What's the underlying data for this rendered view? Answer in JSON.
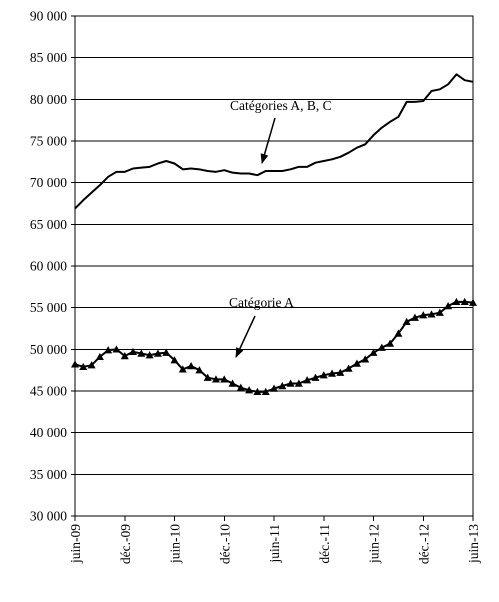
{
  "chart_data": {
    "type": "line",
    "title": "",
    "xlabel": "",
    "ylabel": "",
    "ylim": [
      30000,
      90000
    ],
    "y_ticks": [
      30000,
      35000,
      40000,
      45000,
      50000,
      55000,
      60000,
      65000,
      70000,
      75000,
      80000,
      85000,
      90000
    ],
    "y_tick_labels": [
      "30 000",
      "35 000",
      "40 000",
      "45 000",
      "50 000",
      "55 000",
      "60 000",
      "65 000",
      "70 000",
      "75 000",
      "80 000",
      "85 000",
      "90 000"
    ],
    "x_ticks": [
      "juin-09",
      "déc.-09",
      "juin-10",
      "déc.-10",
      "juin-11",
      "déc.-11",
      "juin-12",
      "déc.-12",
      "juin-13"
    ],
    "grid": "horizontal",
    "x": [
      "2009-06",
      "2009-07",
      "2009-08",
      "2009-09",
      "2009-10",
      "2009-11",
      "2009-12",
      "2010-01",
      "2010-02",
      "2010-03",
      "2010-04",
      "2010-05",
      "2010-06",
      "2010-07",
      "2010-08",
      "2010-09",
      "2010-10",
      "2010-11",
      "2010-12",
      "2011-01",
      "2011-02",
      "2011-03",
      "2011-04",
      "2011-05",
      "2011-06",
      "2011-07",
      "2011-08",
      "2011-09",
      "2011-10",
      "2011-11",
      "2011-12",
      "2012-01",
      "2012-02",
      "2012-03",
      "2012-04",
      "2012-05",
      "2012-06",
      "2012-07",
      "2012-08",
      "2012-09",
      "2012-10",
      "2012-11",
      "2012-12",
      "2013-01",
      "2013-02",
      "2013-03",
      "2013-04",
      "2013-05",
      "2013-06"
    ],
    "series": [
      {
        "name": "Catégories A, B, C",
        "marker": "none",
        "values": [
          66900,
          67900,
          68800,
          69700,
          70700,
          71300,
          71300,
          71700,
          71800,
          71900,
          72300,
          72600,
          72300,
          71600,
          71700,
          71600,
          71400,
          71300,
          71500,
          71200,
          71100,
          71100,
          70900,
          71400,
          71400,
          71400,
          71600,
          71900,
          71900,
          72400,
          72600,
          72800,
          73100,
          73600,
          74200,
          74600,
          75700,
          76600,
          77300,
          77900,
          79700,
          79700,
          79800,
          81000,
          81200,
          81800,
          83000,
          82300,
          82100
        ]
      },
      {
        "name": "Catégorie A",
        "marker": "triangle",
        "values": [
          48200,
          47900,
          48100,
          49100,
          49900,
          50000,
          49200,
          49700,
          49500,
          49300,
          49500,
          49600,
          48700,
          47600,
          48000,
          47500,
          46600,
          46400,
          46400,
          45900,
          45400,
          45100,
          44900,
          44900,
          45300,
          45600,
          45900,
          45900,
          46300,
          46600,
          46900,
          47100,
          47200,
          47700,
          48300,
          48800,
          49600,
          50200,
          50700,
          51900,
          53300,
          53800,
          54100,
          54200,
          54400,
          55200,
          55700,
          55700,
          55600
        ]
      }
    ],
    "annotations": [
      {
        "text": "Catégories A, B, C",
        "points_to_series": 0,
        "points_to_x": "2010-11"
      },
      {
        "text": "Catégorie A",
        "points_to_series": 1,
        "points_to_x": "2010-12"
      }
    ]
  }
}
